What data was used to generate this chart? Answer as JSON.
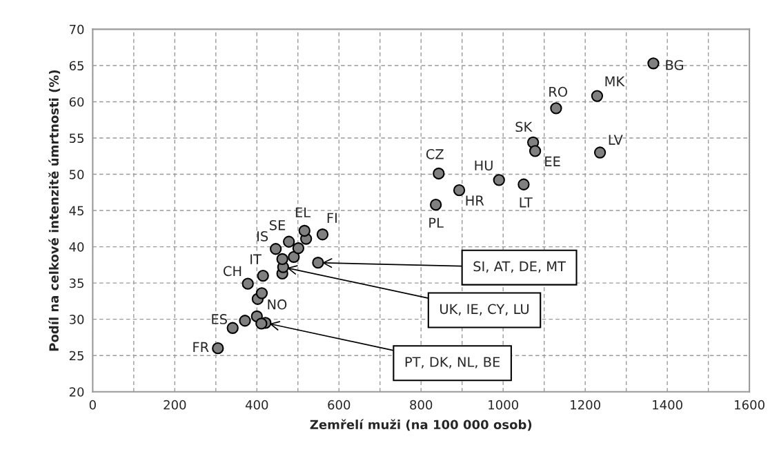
{
  "chart_data": {
    "type": "scatter",
    "xlabel": "Zemřelí muži (na 100 000 osob)",
    "ylabel": "Podíl na celkové intenzitě úmrtnosti (%)",
    "x": [
      305,
      341,
      371,
      400,
      421,
      411,
      402,
      412,
      378,
      415,
      462,
      464,
      462,
      446,
      490,
      501,
      478,
      520,
      516,
      560,
      549,
      843,
      836,
      893,
      990,
      1050,
      1073,
      1078,
      1129,
      1229,
      1236,
      1366
    ],
    "values": [
      26.0,
      28.8,
      29.8,
      30.4,
      29.5,
      29.4,
      32.8,
      33.6,
      34.9,
      36.0,
      36.3,
      37.2,
      38.3,
      39.7,
      38.6,
      39.8,
      40.7,
      41.1,
      42.2,
      41.7,
      37.8,
      50.1,
      45.8,
      47.8,
      49.2,
      48.6,
      54.4,
      53.2,
      59.1,
      60.8,
      53.0,
      65.3
    ],
    "color": "#808080",
    "marker": "circle",
    "grid": true,
    "xlim": [
      0,
      1600
    ],
    "xticks": [
      0,
      {
        "value": 100,
        "label": null
      },
      200,
      {
        "value": 300,
        "label": null
      },
      400,
      {
        "value": 500,
        "label": null
      },
      600,
      {
        "value": 700,
        "label": null
      },
      800,
      {
        "value": 900,
        "label": null
      },
      1000,
      {
        "value": 1100,
        "label": null
      },
      1200,
      {
        "value": 1300,
        "label": null
      },
      1400,
      {
        "value": 1500,
        "label": null
      },
      1600
    ],
    "ylim": [
      20,
      70
    ],
    "yticks": [
      20,
      25,
      30,
      35,
      40,
      45,
      50,
      55,
      60,
      65,
      70
    ],
    "annotations": [
      {
        "text": "FR",
        "x": 305,
        "y": 26.0
      },
      {
        "text": "ES",
        "x": 341,
        "y": 28.8
      },
      {
        "text": "CH",
        "x": 378,
        "y": 34.9
      },
      {
        "text": "IT",
        "x": 415,
        "y": 36.0
      },
      {
        "text": "NO",
        "x": 421,
        "y": 29.5
      },
      {
        "text": "IS",
        "x": 446,
        "y": 39.7
      },
      {
        "text": "SE",
        "x": 478,
        "y": 40.7
      },
      {
        "text": "EL",
        "x": 516,
        "y": 42.2
      },
      {
        "text": "FI",
        "x": 560,
        "y": 41.7
      },
      {
        "text": "CZ",
        "x": 843,
        "y": 50.1
      },
      {
        "text": "PL",
        "x": 836,
        "y": 45.8
      },
      {
        "text": "HR",
        "x": 893,
        "y": 47.8
      },
      {
        "text": "HU",
        "x": 990,
        "y": 49.2
      },
      {
        "text": "LT",
        "x": 1050,
        "y": 48.6
      },
      {
        "text": "SK",
        "x": 1073,
        "y": 54.4
      },
      {
        "text": "EE",
        "x": 1078,
        "y": 53.2
      },
      {
        "text": "RO",
        "x": 1129,
        "y": 59.1
      },
      {
        "text": "MK",
        "x": 1229,
        "y": 60.8
      },
      {
        "text": "LV",
        "x": 1236,
        "y": 53.0
      },
      {
        "text": "BG",
        "x": 1366,
        "y": 65.3
      },
      {
        "text": "SI, AT, DE, MT",
        "x": 549,
        "y": 37.8
      },
      {
        "text": "UK, IE, CY, LU",
        "x": 464,
        "y": 37.2
      },
      {
        "text": "PT, DK, NL, BE",
        "x": 421,
        "y": 29.5
      }
    ]
  }
}
